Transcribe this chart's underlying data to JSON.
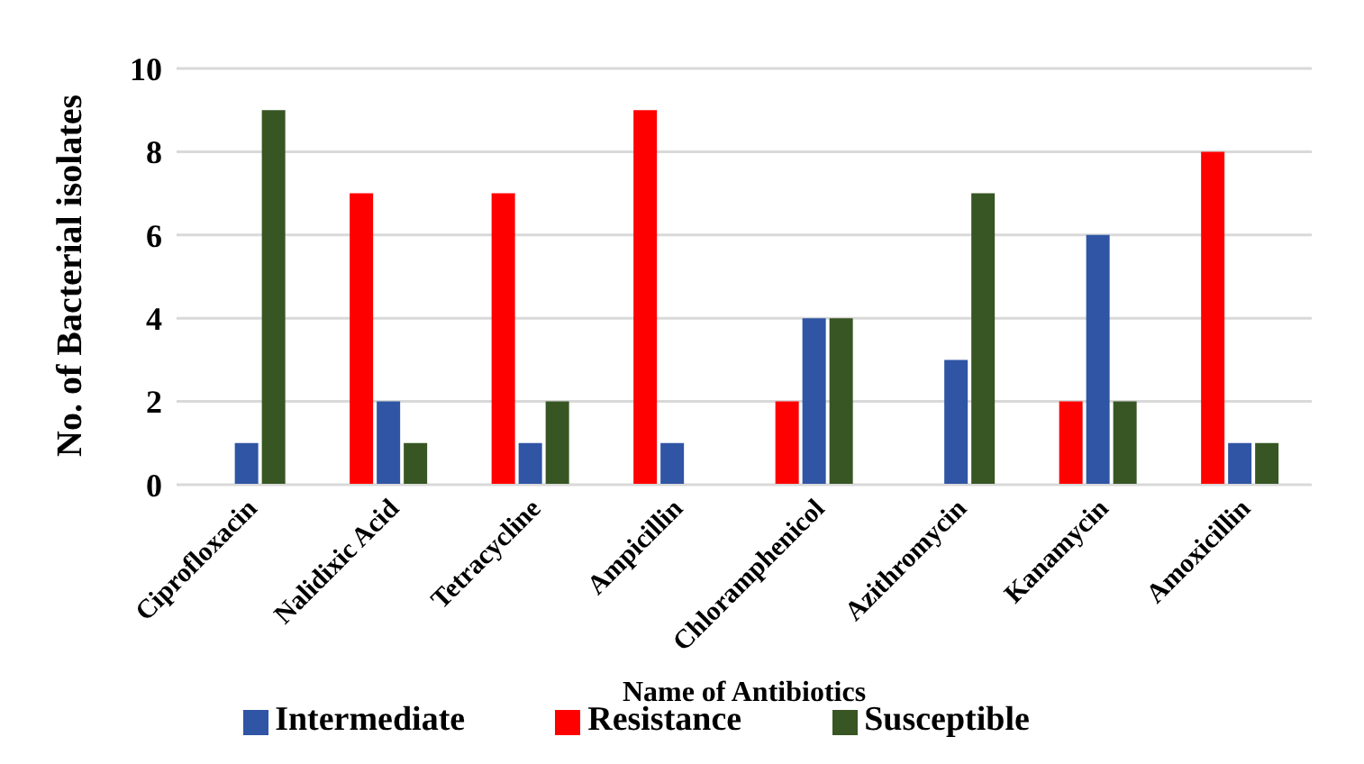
{
  "chart_data": {
    "type": "bar",
    "xlabel": "Name of Antibiotics",
    "ylabel": "No. of Bacterial isolates",
    "categories": [
      "Ciprofloxacin",
      "Nalidixic Acid",
      "Tetracycline",
      "Ampicillin",
      "Chloramphenicol",
      "Azithromycin",
      "Kanamycin",
      "Amoxicillin"
    ],
    "series": [
      {
        "name": "Resistance",
        "color": "#ff0000",
        "values": [
          0,
          7,
          7,
          9,
          2,
          0,
          2,
          8
        ]
      },
      {
        "name": "Intermediate",
        "color": "#2f55a4",
        "values": [
          1,
          2,
          1,
          1,
          4,
          3,
          6,
          1
        ]
      },
      {
        "name": "Susceptible",
        "color": "#375623",
        "values": [
          9,
          1,
          2,
          0,
          4,
          7,
          2,
          1
        ]
      }
    ],
    "ylim": [
      0,
      10
    ],
    "yticks": [
      0,
      2,
      4,
      6,
      8,
      10
    ],
    "grid": "y",
    "legend": "bottom"
  }
}
